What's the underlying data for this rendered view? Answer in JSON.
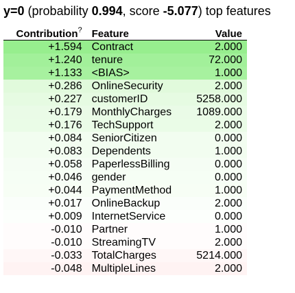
{
  "header": {
    "y_label": "y=0",
    "prob_prefix": " (probability ",
    "probability": "0.994",
    "score_prefix": ", score ",
    "score": "-5.077",
    "suffix": ") top features"
  },
  "table": {
    "columns": {
      "contribution": "Contribution",
      "contribution_help": "?",
      "feature": "Feature",
      "value": "Value"
    },
    "rows": [
      {
        "contribution": "+1.594",
        "feature": "Contract",
        "value": "2.000",
        "color": "#97ee8e"
      },
      {
        "contribution": "+1.240",
        "feature": "tenure",
        "value": "72.000",
        "color": "#a2f09a"
      },
      {
        "contribution": "+1.133",
        "feature": "<BIAS>",
        "value": "1.000",
        "color": "#a7f19f"
      },
      {
        "contribution": "+0.286",
        "feature": "OnlineSecurity",
        "value": "2.000",
        "color": "#e1fadc"
      },
      {
        "contribution": "+0.227",
        "feature": "customerID",
        "value": "5258.000",
        "color": "#e6fbe2"
      },
      {
        "contribution": "+0.179",
        "feature": "MonthlyCharges",
        "value": "1089.000",
        "color": "#eafbe7"
      },
      {
        "contribution": "+0.176",
        "feature": "TechSupport",
        "value": "2.000",
        "color": "#eafce7"
      },
      {
        "contribution": "+0.084",
        "feature": "SeniorCitizen",
        "value": "0.000",
        "color": "#f2fdf0"
      },
      {
        "contribution": "+0.083",
        "feature": "Dependents",
        "value": "1.000",
        "color": "#f2fdf0"
      },
      {
        "contribution": "+0.058",
        "feature": "PaperlessBilling",
        "value": "0.000",
        "color": "#f5fdf4"
      },
      {
        "contribution": "+0.046",
        "feature": "gender",
        "value": "0.000",
        "color": "#f6fef5"
      },
      {
        "contribution": "+0.044",
        "feature": "PaymentMethod",
        "value": "1.000",
        "color": "#f7fef5"
      },
      {
        "contribution": "+0.017",
        "feature": "OnlineBackup",
        "value": "2.000",
        "color": "#fafefa"
      },
      {
        "contribution": "+0.009",
        "feature": "InternetService",
        "value": "0.000",
        "color": "#fcfffc"
      },
      {
        "contribution": "-0.010",
        "feature": "Partner",
        "value": "1.000",
        "color": "#fffcfc"
      },
      {
        "contribution": "-0.010",
        "feature": "StreamingTV",
        "value": "2.000",
        "color": "#fffcfc"
      },
      {
        "contribution": "-0.033",
        "feature": "TotalCharges",
        "value": "5214.000",
        "color": "#fff7f7"
      },
      {
        "contribution": "-0.048",
        "feature": "MultipleLines",
        "value": "2.000",
        "color": "#fff3f3"
      }
    ]
  }
}
